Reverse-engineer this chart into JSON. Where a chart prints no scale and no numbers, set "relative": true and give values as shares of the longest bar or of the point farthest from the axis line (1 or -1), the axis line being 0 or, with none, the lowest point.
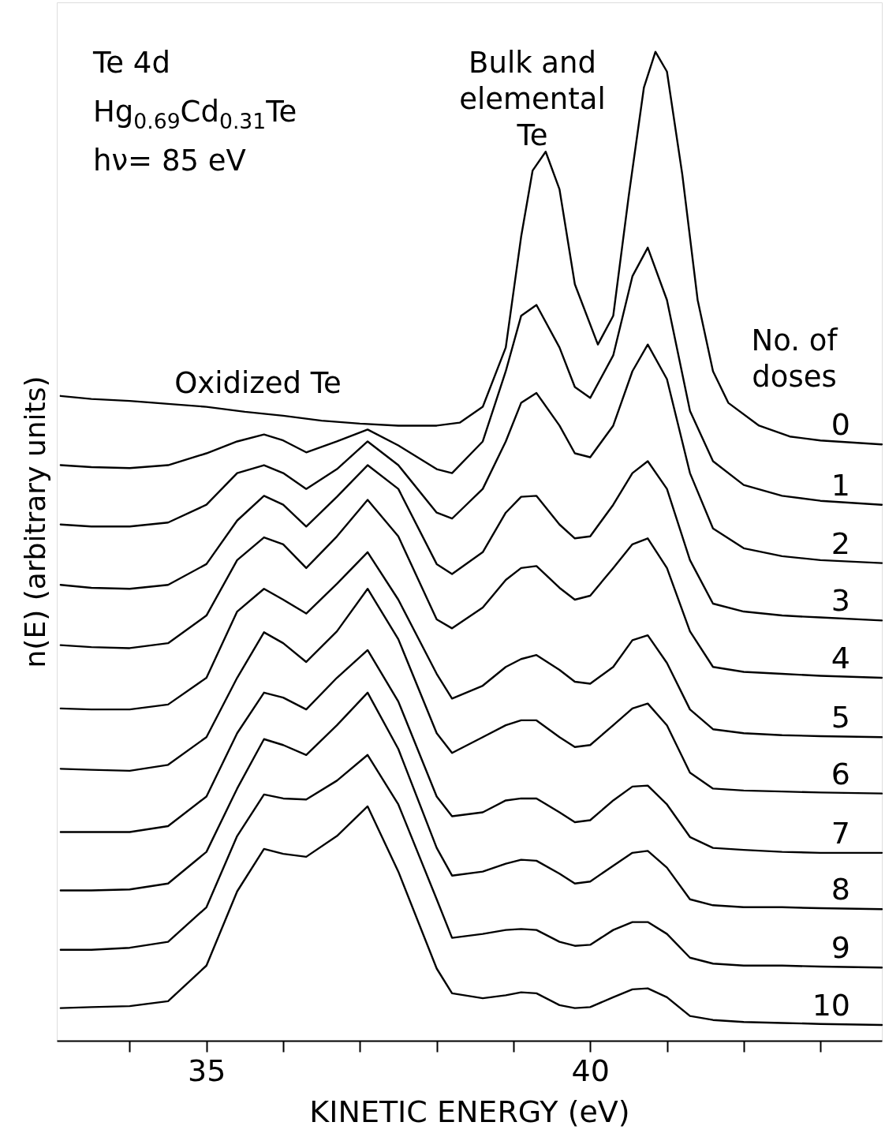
{
  "chart_data": {
    "type": "line",
    "relative": true,
    "xlabel": "KINETIC ENERGY (eV)",
    "ylabel": "n(E) (arbitrary units)",
    "xlim": [
      33.05,
      43.8
    ],
    "xticks": [
      {
        "value": 34,
        "label": null
      },
      35,
      {
        "value": 36,
        "label": null
      },
      {
        "value": 37,
        "label": null
      },
      {
        "value": 38,
        "label": null
      },
      {
        "value": 39,
        "label": null
      },
      40,
      {
        "value": 41,
        "label": null
      },
      {
        "value": 42,
        "label": null
      },
      {
        "value": 43,
        "label": null
      }
    ],
    "grid": false,
    "annotations": [
      "Te 4d",
      "Hg$_{0.69}$Cd$_{0.31}$Te",
      "hν= 85 eV",
      "Oxidized Te",
      "Bulk and\nelemental\nTe",
      "No. of\ndoses"
    ],
    "x": [
      33.1,
      33.5,
      34,
      34.5,
      35,
      35.4,
      35.75,
      36.0,
      36.3,
      36.7,
      37.1,
      37.5,
      38.0,
      38.2,
      38.6,
      38.9,
      39.1,
      39.3,
      39.6,
      39.8,
      40.0,
      40.3,
      40.55,
      40.75,
      41.0,
      41.3,
      41.6,
      42.0,
      42.5,
      43,
      43.8
    ],
    "series": [
      {
        "name": "0",
        "color": "#000000",
        "x": [
          33.1,
          33.5,
          34,
          34.5,
          35,
          35.5,
          36,
          36.5,
          37,
          37.5,
          38,
          38.3,
          38.6,
          38.9,
          39.1,
          39.25,
          39.42,
          39.6,
          39.8,
          40.1,
          40.3,
          40.5,
          40.7,
          40.85,
          41.0,
          41.2,
          41.4,
          41.6,
          41.8,
          42.2,
          42.6,
          43,
          43.8
        ],
        "values": [
          0.652,
          0.649,
          0.647,
          0.644,
          0.641,
          0.636,
          0.632,
          0.627,
          0.624,
          0.622,
          0.622,
          0.625,
          0.641,
          0.701,
          0.813,
          0.88,
          0.899,
          0.861,
          0.765,
          0.704,
          0.733,
          0.853,
          0.964,
          1.0,
          0.98,
          0.876,
          0.749,
          0.677,
          0.645,
          0.622,
          0.611,
          0.607,
          0.603
        ]
      },
      {
        "name": "1",
        "color": "#000000",
        "values": [
          0.582,
          0.58,
          0.579,
          0.582,
          0.594,
          0.606,
          0.613,
          0.607,
          0.595,
          0.606,
          0.618,
          0.602,
          0.578,
          0.574,
          0.606,
          0.677,
          0.733,
          0.744,
          0.701,
          0.661,
          0.65,
          0.693,
          0.773,
          0.802,
          0.749,
          0.637,
          0.586,
          0.562,
          0.551,
          0.546,
          0.542
        ]
      },
      {
        "name": "2",
        "color": "#000000",
        "values": [
          0.522,
          0.52,
          0.52,
          0.524,
          0.542,
          0.574,
          0.582,
          0.574,
          0.558,
          0.578,
          0.606,
          0.582,
          0.534,
          0.528,
          0.558,
          0.606,
          0.645,
          0.655,
          0.622,
          0.594,
          0.59,
          0.622,
          0.677,
          0.704,
          0.669,
          0.574,
          0.518,
          0.498,
          0.49,
          0.486,
          0.483
        ]
      },
      {
        "name": "3",
        "color": "#000000",
        "values": [
          0.461,
          0.458,
          0.457,
          0.461,
          0.482,
          0.526,
          0.551,
          0.542,
          0.52,
          0.55,
          0.582,
          0.558,
          0.482,
          0.472,
          0.494,
          0.534,
          0.55,
          0.551,
          0.522,
          0.508,
          0.51,
          0.542,
          0.574,
          0.586,
          0.558,
          0.486,
          0.442,
          0.434,
          0.43,
          0.428,
          0.425
        ]
      },
      {
        "name": "4",
        "color": "#000000",
        "values": [
          0.4,
          0.398,
          0.397,
          0.402,
          0.43,
          0.486,
          0.509,
          0.502,
          0.478,
          0.51,
          0.547,
          0.51,
          0.426,
          0.417,
          0.438,
          0.466,
          0.478,
          0.48,
          0.458,
          0.446,
          0.45,
          0.478,
          0.502,
          0.508,
          0.478,
          0.414,
          0.378,
          0.373,
          0.371,
          0.369,
          0.367
        ]
      },
      {
        "name": "5",
        "color": "#000000",
        "values": [
          0.336,
          0.335,
          0.335,
          0.34,
          0.367,
          0.434,
          0.457,
          0.446,
          0.432,
          0.462,
          0.494,
          0.446,
          0.371,
          0.346,
          0.359,
          0.378,
          0.386,
          0.39,
          0.375,
          0.363,
          0.361,
          0.378,
          0.405,
          0.41,
          0.382,
          0.335,
          0.315,
          0.311,
          0.309,
          0.308,
          0.307
        ]
      },
      {
        "name": "6",
        "color": "#000000",
        "values": [
          0.275,
          0.274,
          0.273,
          0.279,
          0.307,
          0.367,
          0.413,
          0.402,
          0.383,
          0.414,
          0.457,
          0.406,
          0.311,
          0.291,
          0.307,
          0.319,
          0.324,
          0.324,
          0.307,
          0.297,
          0.299,
          0.319,
          0.336,
          0.341,
          0.319,
          0.271,
          0.255,
          0.253,
          0.252,
          0.251,
          0.25
        ]
      },
      {
        "name": "7",
        "color": "#000000",
        "values": [
          0.211,
          0.211,
          0.211,
          0.217,
          0.247,
          0.311,
          0.352,
          0.347,
          0.335,
          0.367,
          0.395,
          0.343,
          0.247,
          0.227,
          0.231,
          0.243,
          0.245,
          0.245,
          0.231,
          0.221,
          0.223,
          0.243,
          0.257,
          0.258,
          0.239,
          0.206,
          0.195,
          0.193,
          0.191,
          0.19,
          0.19
        ]
      },
      {
        "name": "8",
        "color": "#000000",
        "values": [
          0.152,
          0.152,
          0.153,
          0.159,
          0.191,
          0.255,
          0.305,
          0.299,
          0.289,
          0.319,
          0.352,
          0.295,
          0.195,
          0.167,
          0.171,
          0.179,
          0.183,
          0.182,
          0.169,
          0.159,
          0.161,
          0.177,
          0.19,
          0.192,
          0.175,
          0.143,
          0.137,
          0.135,
          0.135,
          0.134,
          0.133
        ]
      },
      {
        "name": "9",
        "color": "#000000",
        "values": [
          0.092,
          0.092,
          0.094,
          0.1,
          0.135,
          0.207,
          0.249,
          0.245,
          0.244,
          0.263,
          0.289,
          0.239,
          0.143,
          0.104,
          0.108,
          0.112,
          0.113,
          0.112,
          0.1,
          0.096,
          0.097,
          0.112,
          0.12,
          0.12,
          0.108,
          0.084,
          0.078,
          0.076,
          0.076,
          0.075,
          0.074
        ]
      },
      {
        "name": "10",
        "color": "#000000",
        "values": [
          0.033,
          0.034,
          0.035,
          0.04,
          0.076,
          0.151,
          0.194,
          0.189,
          0.186,
          0.207,
          0.237,
          0.171,
          0.073,
          0.048,
          0.043,
          0.046,
          0.049,
          0.048,
          0.036,
          0.033,
          0.034,
          0.044,
          0.052,
          0.053,
          0.044,
          0.025,
          0.021,
          0.019,
          0.018,
          0.017,
          0.016
        ]
      }
    ]
  }
}
